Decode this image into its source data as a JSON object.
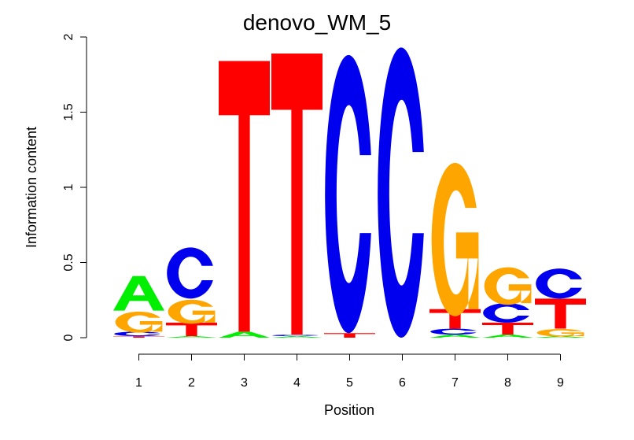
{
  "chart_data": {
    "type": "sequence-logo",
    "title": "denovo_WM_5",
    "xlabel": "Position",
    "ylabel": "Information content",
    "ylim": [
      0,
      2
    ],
    "yticks": [
      "0",
      "0.5",
      "1",
      "1.5",
      "2"
    ],
    "categories": [
      "1",
      "2",
      "3",
      "4",
      "5",
      "6",
      "7",
      "8",
      "9"
    ],
    "colors": {
      "A": "#00ee00",
      "C": "#0000ee",
      "G": "#ffa500",
      "T": "#ff0000"
    },
    "positions": [
      {
        "position": "1",
        "stack": [
          {
            "letter": "T",
            "value": 0.01
          },
          {
            "letter": "C",
            "value": 0.03
          },
          {
            "letter": "G",
            "value": 0.14
          },
          {
            "letter": "A",
            "value": 0.23
          }
        ]
      },
      {
        "position": "2",
        "stack": [
          {
            "letter": "A",
            "value": 0.01
          },
          {
            "letter": "T",
            "value": 0.09
          },
          {
            "letter": "G",
            "value": 0.16
          },
          {
            "letter": "C",
            "value": 0.34
          }
        ]
      },
      {
        "position": "3",
        "stack": [
          {
            "letter": "A",
            "value": 0.04
          },
          {
            "letter": "T",
            "value": 1.8
          }
        ]
      },
      {
        "position": "4",
        "stack": [
          {
            "letter": "A",
            "value": 0.01
          },
          {
            "letter": "C",
            "value": 0.01
          },
          {
            "letter": "T",
            "value": 1.87
          }
        ]
      },
      {
        "position": "5",
        "stack": [
          {
            "letter": "T",
            "value": 0.03
          },
          {
            "letter": "C",
            "value": 1.85
          }
        ]
      },
      {
        "position": "6",
        "stack": [
          {
            "letter": "C",
            "value": 1.93
          }
        ]
      },
      {
        "position": "7",
        "stack": [
          {
            "letter": "A",
            "value": 0.02
          },
          {
            "letter": "C",
            "value": 0.04
          },
          {
            "letter": "T",
            "value": 0.13
          },
          {
            "letter": "G",
            "value": 1.02
          }
        ]
      },
      {
        "position": "8",
        "stack": [
          {
            "letter": "A",
            "value": 0.02
          },
          {
            "letter": "T",
            "value": 0.08
          },
          {
            "letter": "C",
            "value": 0.13
          },
          {
            "letter": "G",
            "value": 0.25
          }
        ]
      },
      {
        "position": "9",
        "stack": [
          {
            "letter": "A",
            "value": 0.01
          },
          {
            "letter": "G",
            "value": 0.05
          },
          {
            "letter": "T",
            "value": 0.2
          },
          {
            "letter": "C",
            "value": 0.2
          }
        ]
      }
    ]
  }
}
